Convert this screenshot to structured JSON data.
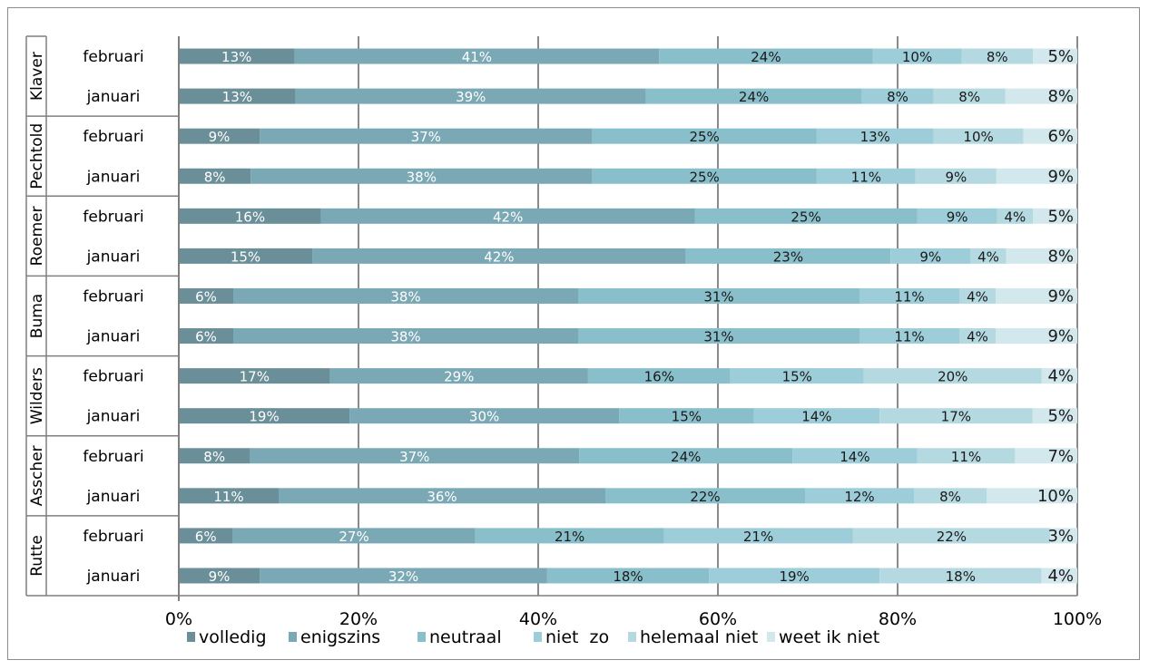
{
  "chart_data": {
    "type": "bar",
    "orientation": "horizontal",
    "stacked": "percent",
    "xlim": [
      0,
      100
    ],
    "x_ticks": [
      "0%",
      "20%",
      "40%",
      "60%",
      "80%",
      "100%"
    ],
    "grid": true,
    "legend": "bottom",
    "groups": [
      {
        "name": "Klaver",
        "rows": [
          {
            "label": "februari",
            "values": [
              13,
              41,
              24,
              10,
              8,
              5
            ]
          },
          {
            "label": "januari",
            "values": [
              13,
              39,
              24,
              8,
              8,
              8
            ]
          }
        ]
      },
      {
        "name": "Pechtold",
        "rows": [
          {
            "label": "februari",
            "values": [
              9,
              37,
              25,
              13,
              10,
              6
            ]
          },
          {
            "label": "januari",
            "values": [
              8,
              38,
              25,
              11,
              9,
              9
            ]
          }
        ]
      },
      {
        "name": "Roemer",
        "rows": [
          {
            "label": "februari",
            "values": [
              16,
              42,
              25,
              9,
              4,
              5
            ]
          },
          {
            "label": "januari",
            "values": [
              15,
              42,
              23,
              9,
              4,
              8
            ]
          }
        ]
      },
      {
        "name": "Buma",
        "rows": [
          {
            "label": "februari",
            "values": [
              6,
              38,
              31,
              11,
              4,
              9
            ]
          },
          {
            "label": "januari",
            "values": [
              6,
              38,
              31,
              11,
              4,
              9
            ]
          }
        ]
      },
      {
        "name": "Wilders",
        "rows": [
          {
            "label": "februari",
            "values": [
              17,
              29,
              16,
              15,
              20,
              4
            ]
          },
          {
            "label": "januari",
            "values": [
              19,
              30,
              15,
              14,
              17,
              5
            ]
          }
        ]
      },
      {
        "name": "Asscher",
        "rows": [
          {
            "label": "februari",
            "values": [
              8,
              37,
              24,
              14,
              11,
              7
            ]
          },
          {
            "label": "januari",
            "values": [
              11,
              36,
              22,
              12,
              8,
              10
            ]
          }
        ]
      },
      {
        "name": "Rutte",
        "rows": [
          {
            "label": "februari",
            "values": [
              6,
              27,
              21,
              21,
              22,
              3
            ]
          },
          {
            "label": "januari",
            "values": [
              9,
              32,
              18,
              19,
              18,
              4
            ]
          }
        ]
      }
    ],
    "series": [
      {
        "name": "volledig",
        "color": "#6a8f99"
      },
      {
        "name": "enigszins",
        "color": "#7aa9b5"
      },
      {
        "name": "neutraal",
        "color": "#89bfcb"
      },
      {
        "name": "niet  zo",
        "color": "#9ccdd8"
      },
      {
        "name": "helemaal niet",
        "color": "#b5d9e1"
      },
      {
        "name": "weet ik niet",
        "color": "#d2e8ed"
      }
    ],
    "label_text_colors": [
      "#ffffff",
      "#ffffff",
      "#1a1a1a",
      "#1a1a1a",
      "#1a1a1a",
      "#1a1a1a"
    ]
  }
}
